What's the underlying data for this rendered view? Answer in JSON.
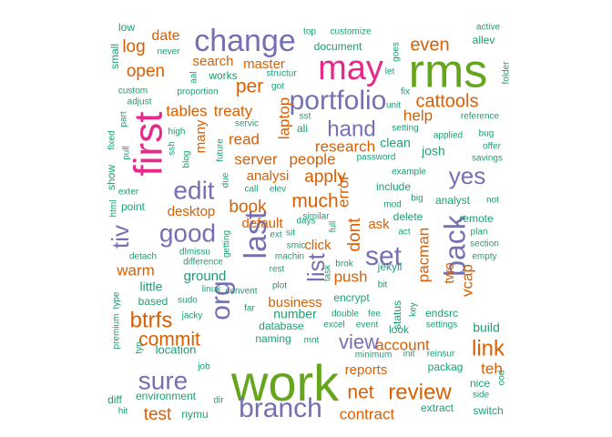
{
  "colors": {
    "green": "#1b9e77",
    "orange": "#d95f02",
    "purple": "#7570b3",
    "pink": "#e7298a",
    "lime": "#66a61e"
  },
  "words": [
    {
      "text": "work",
      "color": "lime"
    },
    {
      "text": "rms",
      "color": "lime"
    },
    {
      "text": "first",
      "color": "pink"
    },
    {
      "text": "may",
      "color": "pink"
    },
    {
      "text": "change",
      "color": "purple"
    },
    {
      "text": "portfolio",
      "color": "purple"
    },
    {
      "text": "org",
      "color": "purple"
    },
    {
      "text": "last",
      "color": "purple"
    },
    {
      "text": "set",
      "color": "purple"
    },
    {
      "text": "back",
      "color": "purple"
    },
    {
      "text": "branch",
      "color": "purple"
    },
    {
      "text": "sure",
      "color": "purple"
    },
    {
      "text": "good",
      "color": "purple"
    },
    {
      "text": "edit",
      "color": "purple"
    },
    {
      "text": "hand",
      "color": "purple"
    },
    {
      "text": "yes",
      "color": "purple"
    },
    {
      "text": "list",
      "color": "purple"
    },
    {
      "text": "tiv",
      "color": "purple"
    },
    {
      "text": "view",
      "color": "purple"
    },
    {
      "text": "even",
      "color": "orange"
    },
    {
      "text": "cattools",
      "color": "orange"
    },
    {
      "text": "help",
      "color": "orange"
    },
    {
      "text": "laptop",
      "color": "orange"
    },
    {
      "text": "open",
      "color": "orange"
    },
    {
      "text": "log",
      "color": "orange"
    },
    {
      "text": "date",
      "color": "orange"
    },
    {
      "text": "master",
      "color": "orange"
    },
    {
      "text": "search",
      "color": "orange"
    },
    {
      "text": "per",
      "color": "orange"
    },
    {
      "text": "tables",
      "color": "orange"
    },
    {
      "text": "treaty",
      "color": "orange"
    },
    {
      "text": "read",
      "color": "orange"
    },
    {
      "text": "server",
      "color": "orange"
    },
    {
      "text": "research",
      "color": "orange"
    },
    {
      "text": "people",
      "color": "orange"
    },
    {
      "text": "apply",
      "color": "orange"
    },
    {
      "text": "analysi",
      "color": "orange"
    },
    {
      "text": "much",
      "color": "orange"
    },
    {
      "text": "book",
      "color": "orange"
    },
    {
      "text": "default",
      "color": "orange"
    },
    {
      "text": "desktop",
      "color": "orange"
    },
    {
      "text": "error",
      "color": "orange"
    },
    {
      "text": "dont",
      "color": "orange"
    },
    {
      "text": "ask",
      "color": "orange"
    },
    {
      "text": "pacman",
      "color": "orange"
    },
    {
      "text": "two",
      "color": "orange"
    },
    {
      "text": "vcap",
      "color": "orange"
    },
    {
      "text": "click",
      "color": "orange"
    },
    {
      "text": "push",
      "color": "orange"
    },
    {
      "text": "warm",
      "color": "orange"
    },
    {
      "text": "btrfs",
      "color": "orange"
    },
    {
      "text": "commit",
      "color": "orange"
    },
    {
      "text": "business",
      "color": "orange"
    },
    {
      "text": "account",
      "color": "orange"
    },
    {
      "text": "link",
      "color": "orange"
    },
    {
      "text": "teh",
      "color": "orange"
    },
    {
      "text": "reports",
      "color": "orange"
    },
    {
      "text": "net",
      "color": "orange"
    },
    {
      "text": "review",
      "color": "orange"
    },
    {
      "text": "contract",
      "color": "orange"
    },
    {
      "text": "test",
      "color": "orange"
    },
    {
      "text": "many",
      "color": "orange"
    },
    {
      "text": "low",
      "color": "green"
    },
    {
      "text": "small",
      "color": "green"
    },
    {
      "text": "never",
      "color": "green"
    },
    {
      "text": "aal",
      "color": "green"
    },
    {
      "text": "works",
      "color": "green"
    },
    {
      "text": "top",
      "color": "green"
    },
    {
      "text": "customize",
      "color": "green"
    },
    {
      "text": "document",
      "color": "green"
    },
    {
      "text": "goes",
      "color": "green"
    },
    {
      "text": "active",
      "color": "green"
    },
    {
      "text": "allev",
      "color": "green"
    },
    {
      "text": "folder",
      "color": "green"
    },
    {
      "text": "structur",
      "color": "green"
    },
    {
      "text": "got",
      "color": "green"
    },
    {
      "text": "let",
      "color": "green"
    },
    {
      "text": "custom",
      "color": "green"
    },
    {
      "text": "adjust",
      "color": "green"
    },
    {
      "text": "proportion",
      "color": "green"
    },
    {
      "text": "part",
      "color": "green"
    },
    {
      "text": "fix",
      "color": "green"
    },
    {
      "text": "unit",
      "color": "green"
    },
    {
      "text": "reference",
      "color": "green"
    },
    {
      "text": "sst",
      "color": "green"
    },
    {
      "text": "ali",
      "color": "green"
    },
    {
      "text": "setting",
      "color": "green"
    },
    {
      "text": "applied",
      "color": "green"
    },
    {
      "text": "bug",
      "color": "green"
    },
    {
      "text": "offer",
      "color": "green"
    },
    {
      "text": "high",
      "color": "green"
    },
    {
      "text": "servic",
      "color": "green"
    },
    {
      "text": "fixed",
      "color": "green"
    },
    {
      "text": "pull",
      "color": "green"
    },
    {
      "text": "ssh",
      "color": "green"
    },
    {
      "text": "blog",
      "color": "green"
    },
    {
      "text": "future",
      "color": "green"
    },
    {
      "text": "clean",
      "color": "green"
    },
    {
      "text": "josh",
      "color": "green"
    },
    {
      "text": "savings",
      "color": "green"
    },
    {
      "text": "password",
      "color": "green"
    },
    {
      "text": "show",
      "color": "green"
    },
    {
      "text": "due",
      "color": "green"
    },
    {
      "text": "call",
      "color": "green"
    },
    {
      "text": "elev",
      "color": "green"
    },
    {
      "text": "example",
      "color": "green"
    },
    {
      "text": "include",
      "color": "green"
    },
    {
      "text": "mod",
      "color": "green"
    },
    {
      "text": "big",
      "color": "green"
    },
    {
      "text": "analyst",
      "color": "green"
    },
    {
      "text": "not",
      "color": "green"
    },
    {
      "text": "exter",
      "color": "green"
    },
    {
      "text": "html",
      "color": "green"
    },
    {
      "text": "point",
      "color": "green"
    },
    {
      "text": "similar",
      "color": "green"
    },
    {
      "text": "days",
      "color": "green"
    },
    {
      "text": "full",
      "color": "green"
    },
    {
      "text": "act",
      "color": "green"
    },
    {
      "text": "delete",
      "color": "green"
    },
    {
      "text": "remote",
      "color": "green"
    },
    {
      "text": "plan",
      "color": "green"
    },
    {
      "text": "getting",
      "color": "green"
    },
    {
      "text": "ext",
      "color": "green"
    },
    {
      "text": "sit",
      "color": "green"
    },
    {
      "text": "smic",
      "color": "green"
    },
    {
      "text": "machin",
      "color": "green"
    },
    {
      "text": "section",
      "color": "green"
    },
    {
      "text": "empty",
      "color": "green"
    },
    {
      "text": "detach",
      "color": "green"
    },
    {
      "text": "dlmissu",
      "color": "green"
    },
    {
      "text": "difference",
      "color": "green"
    },
    {
      "text": "rest",
      "color": "green"
    },
    {
      "text": "task",
      "color": "green"
    },
    {
      "text": "brok",
      "color": "green"
    },
    {
      "text": "jekyll",
      "color": "green"
    },
    {
      "text": "ground",
      "color": "green"
    },
    {
      "text": "linux",
      "color": "green"
    },
    {
      "text": "plot",
      "color": "green"
    },
    {
      "text": "bit",
      "color": "green"
    },
    {
      "text": "little",
      "color": "green"
    },
    {
      "text": "convent",
      "color": "green"
    },
    {
      "text": "type",
      "color": "green"
    },
    {
      "text": "based",
      "color": "green"
    },
    {
      "text": "sudo",
      "color": "green"
    },
    {
      "text": "far",
      "color": "green"
    },
    {
      "text": "status",
      "color": "green"
    },
    {
      "text": "key",
      "color": "green"
    },
    {
      "text": "endsrc",
      "color": "green"
    },
    {
      "text": "encrypt",
      "color": "green"
    },
    {
      "text": "jacky",
      "color": "green"
    },
    {
      "text": "number",
      "color": "green"
    },
    {
      "text": "double",
      "color": "green"
    },
    {
      "text": "fee",
      "color": "green"
    },
    {
      "text": "database",
      "color": "green"
    },
    {
      "text": "excel",
      "color": "green"
    },
    {
      "text": "event",
      "color": "green"
    },
    {
      "text": "look",
      "color": "green"
    },
    {
      "text": "settings",
      "color": "green"
    },
    {
      "text": "build",
      "color": "green"
    },
    {
      "text": "premium",
      "color": "green"
    },
    {
      "text": "typ",
      "color": "green"
    },
    {
      "text": "location",
      "color": "green"
    },
    {
      "text": "naming",
      "color": "green"
    },
    {
      "text": "mnt",
      "color": "green"
    },
    {
      "text": "minimum",
      "color": "green"
    },
    {
      "text": "init",
      "color": "green"
    },
    {
      "text": "reinsur",
      "color": "green"
    },
    {
      "text": "packag",
      "color": "green"
    },
    {
      "text": "job",
      "color": "green"
    },
    {
      "text": "nice",
      "color": "green"
    },
    {
      "text": "side",
      "color": "green"
    },
    {
      "text": "ood",
      "color": "green"
    },
    {
      "text": "diff",
      "color": "green"
    },
    {
      "text": "environment",
      "color": "green"
    },
    {
      "text": "dir",
      "color": "green"
    },
    {
      "text": "extract",
      "color": "green"
    },
    {
      "text": "hit",
      "color": "green"
    },
    {
      "text": "nymu",
      "color": "green"
    },
    {
      "text": "switch",
      "color": "green"
    }
  ]
}
